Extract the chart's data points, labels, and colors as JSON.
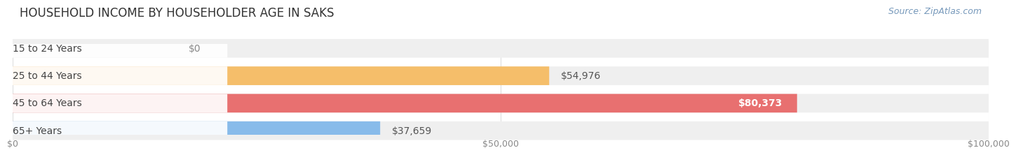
{
  "title": "HOUSEHOLD INCOME BY HOUSEHOLDER AGE IN SAKS",
  "source": "Source: ZipAtlas.com",
  "categories": [
    "15 to 24 Years",
    "25 to 44 Years",
    "45 to 64 Years",
    "65+ Years"
  ],
  "values": [
    0,
    54976,
    80373,
    37659
  ],
  "bar_colors": [
    "#f2a0b8",
    "#f5be6a",
    "#e87070",
    "#88bbea"
  ],
  "bg_color": "#efefef",
  "label_pill_color": "#ffffff",
  "value_label_colors": [
    "#999999",
    "#555555",
    "#ffffff",
    "#555555"
  ],
  "xlim": [
    0,
    100000
  ],
  "xticks": [
    0,
    50000,
    100000
  ],
  "xtick_labels": [
    "$0",
    "$50,000",
    "$100,000"
  ],
  "title_fontsize": 12,
  "cat_fontsize": 10,
  "val_fontsize": 10,
  "tick_fontsize": 9,
  "source_fontsize": 9,
  "background_color": "#ffffff",
  "grid_color": "#dddddd"
}
